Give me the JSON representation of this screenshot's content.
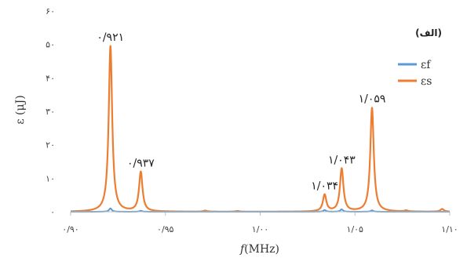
{
  "chart_data": {
    "type": "line",
    "panel_label": "(الف)",
    "xlabel_italic": "f",
    "xlabel_unit": "(MHz)",
    "ylabel": "ε (μJ)",
    "xlim": [
      0.9,
      1.1
    ],
    "ylim": [
      0,
      60
    ],
    "x_ticks": [
      {
        "value": 0.9,
        "label": "۰/۹۰"
      },
      {
        "value": 0.95,
        "label": "۰/۹۵"
      },
      {
        "value": 1.0,
        "label": "۱/۰۰"
      },
      {
        "value": 1.05,
        "label": "۱/۰۵"
      },
      {
        "value": 1.1,
        "label": "۱/۱۰"
      }
    ],
    "y_ticks": [
      {
        "value": 0,
        "label": "۰"
      },
      {
        "value": 10,
        "label": "۱۰"
      },
      {
        "value": 20,
        "label": "۲۰"
      },
      {
        "value": 30,
        "label": "۳۰"
      },
      {
        "value": 40,
        "label": "۴۰"
      },
      {
        "value": 50,
        "label": "۵۰"
      },
      {
        "value": 60,
        "label": "۶۰"
      }
    ],
    "grid": false,
    "legend_position": "right",
    "series": [
      {
        "name": "εf",
        "color": "#5b9bd5",
        "peaks": [
          {
            "x": 0.921,
            "y": 1.0
          },
          {
            "x": 0.937,
            "y": 0.3
          },
          {
            "x": 1.034,
            "y": 0.5
          },
          {
            "x": 1.043,
            "y": 0.7
          },
          {
            "x": 1.059,
            "y": 0.4
          }
        ]
      },
      {
        "name": "εs",
        "color": "#ed7d31",
        "peaks": [
          {
            "x": 0.921,
            "y": 49.5
          },
          {
            "x": 0.937,
            "y": 11.8
          },
          {
            "x": 0.971,
            "y": 0.3
          },
          {
            "x": 0.988,
            "y": 0.2
          },
          {
            "x": 1.034,
            "y": 5.0
          },
          {
            "x": 1.043,
            "y": 12.8
          },
          {
            "x": 1.059,
            "y": 31.0
          },
          {
            "x": 1.077,
            "y": 0.3
          },
          {
            "x": 1.096,
            "y": 0.8
          }
        ]
      }
    ],
    "annotations": [
      {
        "x": 0.921,
        "y": 49.5,
        "text": "۰/۹۲۱"
      },
      {
        "x": 0.937,
        "y": 11.8,
        "text": "۰/۹۳۷"
      },
      {
        "x": 1.034,
        "y": 5.0,
        "text": "۱/۰۳۴"
      },
      {
        "x": 1.043,
        "y": 12.8,
        "text": "۱/۰۴۳"
      },
      {
        "x": 1.059,
        "y": 31.0,
        "text": "۱/۰۵۹"
      }
    ]
  }
}
